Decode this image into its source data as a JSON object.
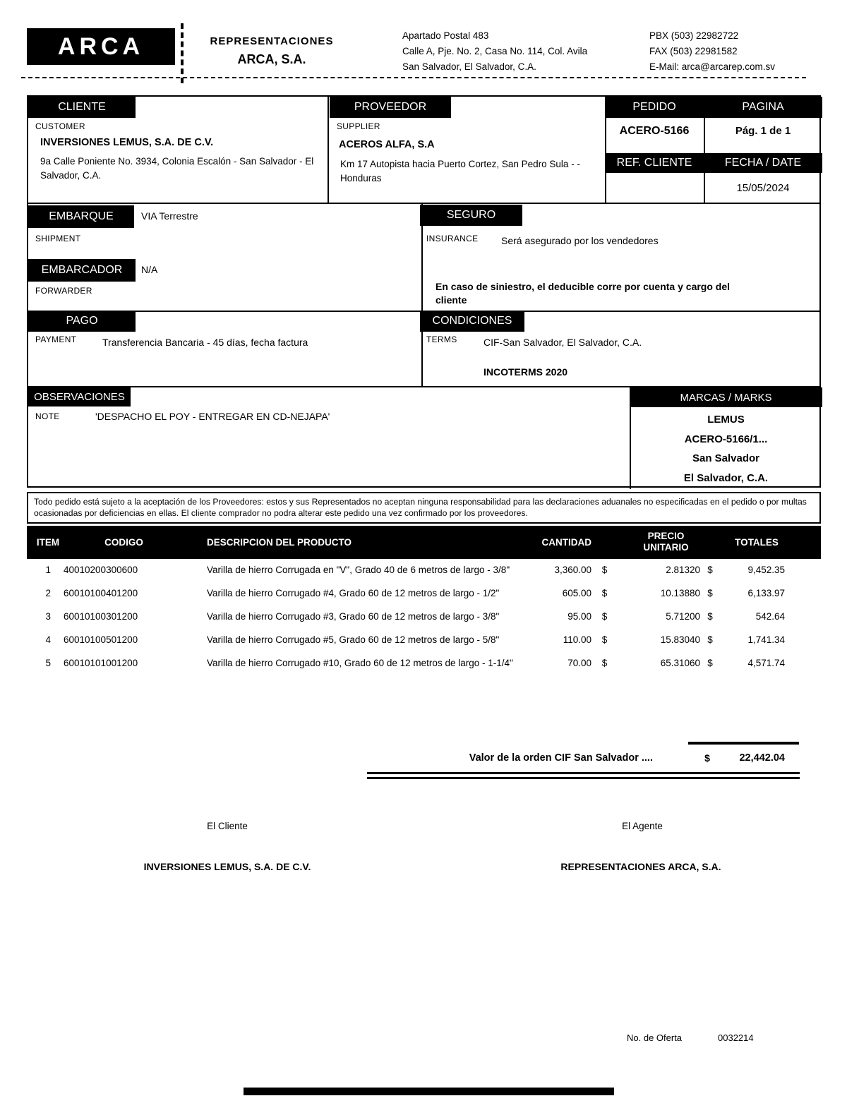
{
  "header": {
    "logo": "ARCA",
    "company_line1": "REPRESENTACIONES",
    "company_line2": "ARCA, S.A.",
    "address_line1": "Apartado Postal 483",
    "address_line2": "Calle A, Pje. No. 2, Casa No. 114, Col. Avila",
    "address_line3": "San Salvador, El Salvador, C.A.",
    "pbx": "PBX (503) 22982722",
    "fax": "FAX (503) 22981582",
    "email": "E-Mail: arca@arcarep.com.sv"
  },
  "cliente": {
    "title": "CLIENTE",
    "subtitle": "CUSTOMER",
    "name": "INVERSIONES LEMUS, S.A. DE C.V.",
    "address": "9a Calle Poniente No. 3934, Colonia Escalón - San Salvador -  El Salvador, C.A."
  },
  "proveedor": {
    "title": "PROVEEDOR",
    "subtitle": "SUPPLIER",
    "name": "ACEROS ALFA, S.A",
    "address": "Km 17 Autopista hacia Puerto Cortez, San Pedro Sula -  - Honduras"
  },
  "pedido": {
    "title": "PEDIDO",
    "value": "ACERO-5166",
    "ref_title": "REF. CLIENTE",
    "ref_value": ""
  },
  "pagina": {
    "title": "PAGINA",
    "value": "Pág. 1 de 1",
    "fecha_title": "FECHA / DATE",
    "fecha_value": "15/05/2024"
  },
  "embarque": {
    "title": "EMBARQUE",
    "subtitle": "SHIPMENT",
    "value": "VIA  Terrestre"
  },
  "embarcador": {
    "title": "EMBARCADOR",
    "subtitle": "FORWARDER",
    "value": "N/A"
  },
  "seguro": {
    "title": "SEGURO",
    "subtitle": "INSURANCE",
    "value": "Será asegurado por los vendedores",
    "note": "En caso de siniestro, el deducible corre por cuenta y cargo del cliente"
  },
  "pago": {
    "title": "PAGO",
    "subtitle": "PAYMENT",
    "value": "Transferencia Bancaria - 45 días, fecha factura"
  },
  "condiciones": {
    "title": "CONDICIONES",
    "subtitle": "TERMS",
    "value": "CIF-San Salvador, El Salvador, C.A.",
    "incoterms": "INCOTERMS 2020"
  },
  "observaciones": {
    "title": "OBSERVACIONES",
    "subtitle": "NOTE",
    "value": "'DESPACHO EL POY - ENTREGAR EN CD-NEJAPA'"
  },
  "marcas": {
    "title": "MARCAS / MARKS",
    "lines": [
      "LEMUS",
      "ACERO-5166/1...",
      "San Salvador",
      "El Salvador, C.A."
    ]
  },
  "disclaimer": "Todo pedido está sujeto a la aceptación de los Proveedores: estos y sus Representados no aceptan ninguna responsabilidad para las declaraciones aduanales no especificadas en el pedido o por multas ocasionadas por deficiencias en ellas. El cliente comprador no podra alterar este pedido una vez confirmado por los proveedores.",
  "items_table": {
    "headers": {
      "item": "ITEM",
      "codigo": "CODIGO",
      "descripcion": "DESCRIPCION DEL PRODUCTO",
      "cantidad": "CANTIDAD",
      "precio": "PRECIO UNITARIO",
      "totales": "TOTALES"
    },
    "currency": "$",
    "rows": [
      {
        "item": "1",
        "codigo": "40010200300600",
        "descripcion": "Varilla de hierro Corrugada en \"V\", Grado 40 de 6 metros de largo - 3/8\"",
        "cantidad": "3,360.00",
        "precio": "2.81320",
        "total": "9,452.35"
      },
      {
        "item": "2",
        "codigo": "60010100401200",
        "descripcion": "Varilla de hierro Corrugado #4, Grado 60 de 12 metros de largo - 1/2\"",
        "cantidad": "605.00",
        "precio": "10.13880",
        "total": "6,133.97"
      },
      {
        "item": "3",
        "codigo": "60010100301200",
        "descripcion": "Varilla de hierro Corrugado #3, Grado 60 de 12 metros de largo - 3/8\"",
        "cantidad": "95.00",
        "precio": "5.71200",
        "total": "542.64"
      },
      {
        "item": "4",
        "codigo": "60010100501200",
        "descripcion": "Varilla de hierro Corrugado #5, Grado 60 de 12 metros de largo - 5/8\"",
        "cantidad": "110.00",
        "precio": "15.83040",
        "total": "1,741.34"
      },
      {
        "item": "5",
        "codigo": "60010101001200",
        "descripcion": "Varilla de hierro Corrugado #10, Grado 60 de 12 metros de largo - 1-1/4\"",
        "cantidad": "70.00",
        "precio": "65.31060",
        "total": "4,571.74"
      }
    ],
    "total_label": "Valor de la orden CIF San Salvador ....",
    "total_value": "22,442.04"
  },
  "signatures": {
    "cliente_label": "El Cliente",
    "agente_label": "El Agente",
    "cliente_name": "INVERSIONES LEMUS, S.A. DE C.V.",
    "agente_name": "REPRESENTACIONES ARCA, S.A."
  },
  "footer": {
    "oferta_label": "No. de Oferta",
    "oferta_value": "0032214"
  },
  "colors": {
    "ink": "#000000",
    "paper": "#ffffff"
  }
}
